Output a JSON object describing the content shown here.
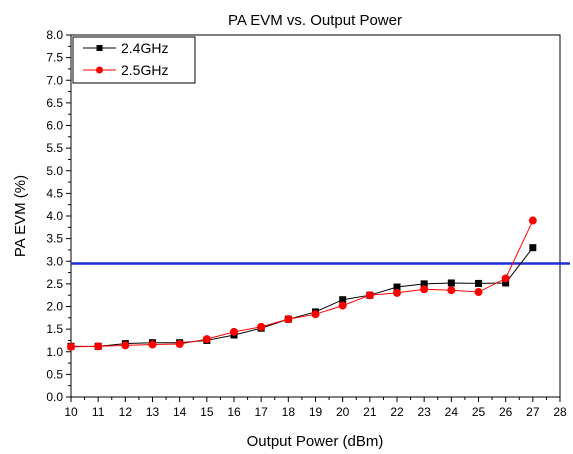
{
  "chart_data": {
    "type": "line",
    "title": "PA EVM vs. Output Power",
    "xlabel": "Output Power (dBm)",
    "ylabel": "PA EVM (%)",
    "xlim": [
      10,
      28
    ],
    "ylim": [
      0.0,
      8.0
    ],
    "x_ticks": [
      "10",
      "11",
      "12",
      "13",
      "14",
      "15",
      "16",
      "17",
      "18",
      "19",
      "20",
      "21",
      "22",
      "23",
      "24",
      "25",
      "26",
      "27",
      "28"
    ],
    "y_ticks": [
      "0.0",
      "0.5",
      "1.0",
      "1.5",
      "2.0",
      "2.5",
      "3.0",
      "3.5",
      "4.0",
      "4.5",
      "5.0",
      "5.5",
      "6.0",
      "6.5",
      "7.0",
      "7.5",
      "8.0"
    ],
    "grid": false,
    "legend_position": "top-left",
    "reference_line": {
      "y": 2.95,
      "color": "#1f2fd6"
    },
    "series": [
      {
        "name": "2.4GHz",
        "marker": "square",
        "color": "#000000",
        "x": [
          10,
          11,
          12,
          13,
          14,
          15,
          16,
          17,
          18,
          19,
          20,
          21,
          22,
          23,
          24,
          25,
          26,
          27
        ],
        "y": [
          1.12,
          1.12,
          1.18,
          1.2,
          1.2,
          1.25,
          1.37,
          1.52,
          1.72,
          1.88,
          2.15,
          2.25,
          2.43,
          2.5,
          2.52,
          2.51,
          2.52,
          3.3
        ]
      },
      {
        "name": "2.5GHz",
        "marker": "circle",
        "color": "#ff0000",
        "x": [
          10,
          11,
          12,
          13,
          14,
          15,
          16,
          17,
          18,
          19,
          20,
          21,
          22,
          23,
          24,
          25,
          26,
          27
        ],
        "y": [
          1.11,
          1.12,
          1.14,
          1.16,
          1.17,
          1.28,
          1.44,
          1.55,
          1.72,
          1.83,
          2.02,
          2.25,
          2.3,
          2.38,
          2.36,
          2.32,
          2.62,
          3.9
        ]
      }
    ]
  }
}
